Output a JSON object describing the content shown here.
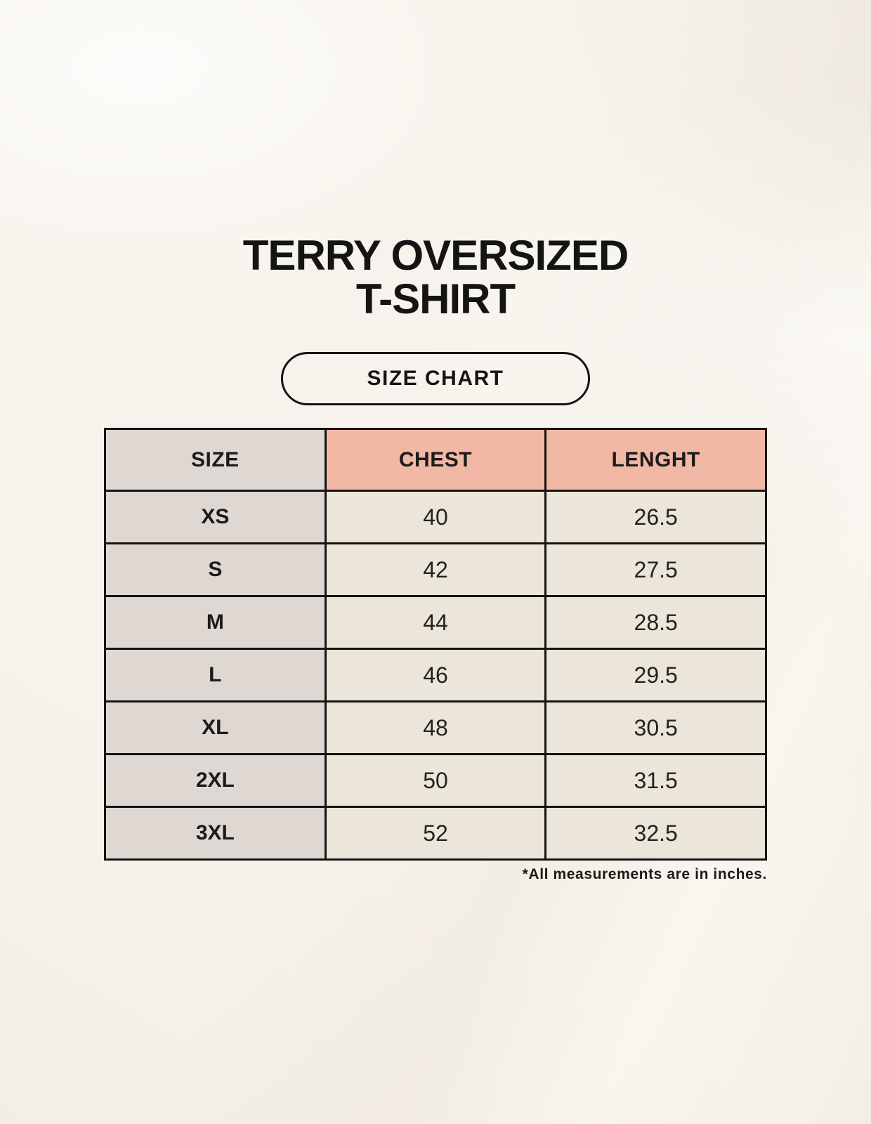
{
  "page": {
    "title_line1": "TERRY OVERSIZED",
    "title_line2": "T-SHIRT",
    "badge_label": "SIZE CHART",
    "footnote": "*All measurements are in inches."
  },
  "chart_data": {
    "type": "table",
    "title": "TERRY OVERSIZED T-SHIRT — SIZE CHART",
    "columns": [
      "SIZE",
      "CHEST",
      "LENGHT"
    ],
    "rows": [
      [
        "XS",
        "40",
        "26.5"
      ],
      [
        "S",
        "42",
        "27.5"
      ],
      [
        "M",
        "44",
        "28.5"
      ],
      [
        "L",
        "46",
        "29.5"
      ],
      [
        "XL",
        "48",
        "30.5"
      ],
      [
        "2XL",
        "50",
        "31.5"
      ],
      [
        "3XL",
        "52",
        "32.5"
      ]
    ],
    "note": "*All measurements are in inches.",
    "units": "inches"
  },
  "colors": {
    "page_background": "#f7f3ec",
    "size_column_bg": "#ded7d2",
    "measure_header_bg": "#f2b8a6",
    "data_cell_bg": "#ebe5da",
    "table_border": "#161412",
    "text": "#151414"
  }
}
